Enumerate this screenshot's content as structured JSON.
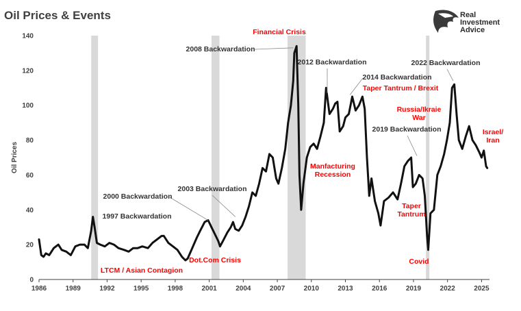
{
  "header": {
    "title": "Oil Prices & Events"
  },
  "brand": {
    "lines": [
      "Real",
      "Investment",
      "Advice"
    ],
    "logo_icon": "eagle-head-icon"
  },
  "colors": {
    "line": "#111111",
    "recession_band": "#d9d9d9",
    "event_text": "#ff0000",
    "backwardation_text": "#333333",
    "axis": "#404040"
  },
  "chart_data": {
    "type": "line",
    "title": "Oil Prices & Events",
    "xlabel": "",
    "ylabel": "Oil Prices",
    "xlim": [
      1986.0,
      2025.7
    ],
    "ylim": [
      0,
      140
    ],
    "grid": false,
    "x_ticks": [
      "1986",
      "1989",
      "1992",
      "1995",
      "1998",
      "2001",
      "2004",
      "2007",
      "2010",
      "2013",
      "2016",
      "2019",
      "2022",
      "2025"
    ],
    "y_ticks": [
      "0",
      "20",
      "40",
      "60",
      "80",
      "100",
      "120",
      "140"
    ],
    "recession_bands": [
      [
        1990.6,
        1991.2
      ],
      [
        2001.2,
        2001.9
      ],
      [
        2007.9,
        2009.5
      ],
      [
        2020.1,
        2020.4
      ]
    ],
    "series": [
      {
        "x": [
          1986.0,
          1986.2,
          1986.4,
          1986.6,
          1986.9,
          1987.3,
          1987.7,
          1988.0,
          1988.4,
          1988.8,
          1989.2,
          1989.6,
          1990.0,
          1990.3,
          1990.6,
          1990.75,
          1990.9,
          1991.1,
          1991.4,
          1991.8,
          1992.2,
          1992.6,
          1993.0,
          1993.5,
          1993.9,
          1994.3,
          1994.7,
          1995.1,
          1995.6,
          1996.0,
          1996.4,
          1996.8,
          1997.0,
          1997.4,
          1997.8,
          1998.2,
          1998.6,
          1998.9,
          1999.1,
          1999.5,
          1999.9,
          2000.2,
          2000.6,
          2000.9,
          2001.2,
          2001.5,
          2001.8,
          2001.95,
          2002.2,
          2002.6,
          2002.9,
          2003.1,
          2003.3,
          2003.6,
          2003.9,
          2004.2,
          2004.5,
          2004.8,
          2005.1,
          2005.4,
          2005.7,
          2006.0,
          2006.3,
          2006.6,
          2006.9,
          2007.1,
          2007.4,
          2007.7,
          2007.95,
          2008.2,
          2008.4,
          2008.5,
          2008.7,
          2008.85,
          2008.95,
          2009.1,
          2009.3,
          2009.6,
          2009.9,
          2010.2,
          2010.5,
          2010.8,
          2011.1,
          2011.3,
          2011.6,
          2011.9,
          2012.1,
          2012.3,
          2012.5,
          2012.8,
          2013.0,
          2013.3,
          2013.6,
          2013.9,
          2014.2,
          2014.5,
          2014.7,
          2014.9,
          2015.1,
          2015.3,
          2015.6,
          2015.9,
          2016.1,
          2016.4,
          2016.8,
          2017.2,
          2017.6,
          2017.9,
          2018.2,
          2018.5,
          2018.8,
          2018.95,
          2019.2,
          2019.5,
          2019.8,
          2020.0,
          2020.2,
          2020.3,
          2020.5,
          2020.8,
          2021.1,
          2021.4,
          2021.7,
          2021.95,
          2022.2,
          2022.4,
          2022.6,
          2022.8,
          2023.0,
          2023.3,
          2023.6,
          2023.9,
          2024.2,
          2024.5,
          2024.8,
          2025.0,
          2025.2,
          2025.4,
          2025.5
        ],
        "y": [
          23,
          14,
          13,
          15,
          14,
          18,
          20,
          17,
          16,
          14,
          19,
          20,
          20,
          18,
          28,
          36,
          30,
          21,
          20,
          19,
          21,
          20,
          18,
          17,
          16,
          18,
          18,
          19,
          18,
          21,
          23,
          25,
          25,
          21,
          19,
          17,
          13,
          11,
          12,
          18,
          24,
          28,
          33,
          34,
          30,
          26,
          22,
          19,
          22,
          27,
          30,
          33,
          29,
          28,
          31,
          36,
          42,
          50,
          48,
          55,
          64,
          62,
          72,
          70,
          58,
          55,
          64,
          75,
          90,
          100,
          114,
          130,
          134,
          100,
          60,
          40,
          55,
          70,
          76,
          78,
          75,
          82,
          90,
          110,
          95,
          98,
          101,
          102,
          85,
          88,
          93,
          95,
          105,
          97,
          100,
          105,
          98,
          70,
          48,
          58,
          45,
          38,
          31,
          45,
          47,
          50,
          46,
          55,
          65,
          68,
          70,
          53,
          55,
          60,
          58,
          48,
          25,
          17,
          38,
          40,
          60,
          65,
          72,
          80,
          90,
          110,
          112,
          95,
          80,
          75,
          82,
          88,
          80,
          77,
          73,
          70,
          74,
          65,
          64
        ]
      }
    ],
    "annotations": [
      {
        "text": "Financial Crisis",
        "x": 2008.5,
        "y": 134,
        "color": "event"
      },
      {
        "text": "2008 Backwardation",
        "x": 2008.4,
        "y": 133,
        "color": "backwardation"
      },
      {
        "text": "2012 Backwardation",
        "x": 2011.4,
        "y": 107,
        "color": "backwardation"
      },
      {
        "text": "2014 Backwardation",
        "x": 2013.4,
        "y": 106,
        "color": "backwardation"
      },
      {
        "text": "Taper Tantrum / Brexit",
        "x": 2014.0,
        "y": 103,
        "color": "event"
      },
      {
        "text": "2022 Backwardation",
        "x": 2022.5,
        "y": 114,
        "color": "backwardation"
      },
      {
        "text": "Russia/Ikraie War",
        "x": 2022.3,
        "y": 90,
        "color": "event"
      },
      {
        "text": "Israel/ Iran",
        "x": 2025.2,
        "y": 68,
        "color": "event"
      },
      {
        "text": "2019 Backwardation",
        "x": 2019.3,
        "y": 71,
        "color": "backwardation"
      },
      {
        "text": "Manfacturing Recession",
        "x": 2011.5,
        "y": 80,
        "color": "event"
      },
      {
        "text": "Taper Tantrum",
        "x": 2019.3,
        "y": 53,
        "color": "event"
      },
      {
        "text": "Covid",
        "x": 2020.25,
        "y": 17,
        "color": "event"
      },
      {
        "text": "2003 Backwardation",
        "x": 2003.3,
        "y": 36,
        "color": "backwardation"
      },
      {
        "text": "2000 Backwardation",
        "x": 2000.9,
        "y": 34,
        "color": "backwardation"
      },
      {
        "text": "1997 Backwardation",
        "x": 1997.0,
        "y": 25,
        "color": "backwardation"
      },
      {
        "text": "LTCM / Asian Contagion",
        "x": 1997.5,
        "y": 18,
        "color": "event"
      },
      {
        "text": "Dot.Com Crisis",
        "x": 2001.5,
        "y": 22,
        "color": "event"
      }
    ]
  }
}
